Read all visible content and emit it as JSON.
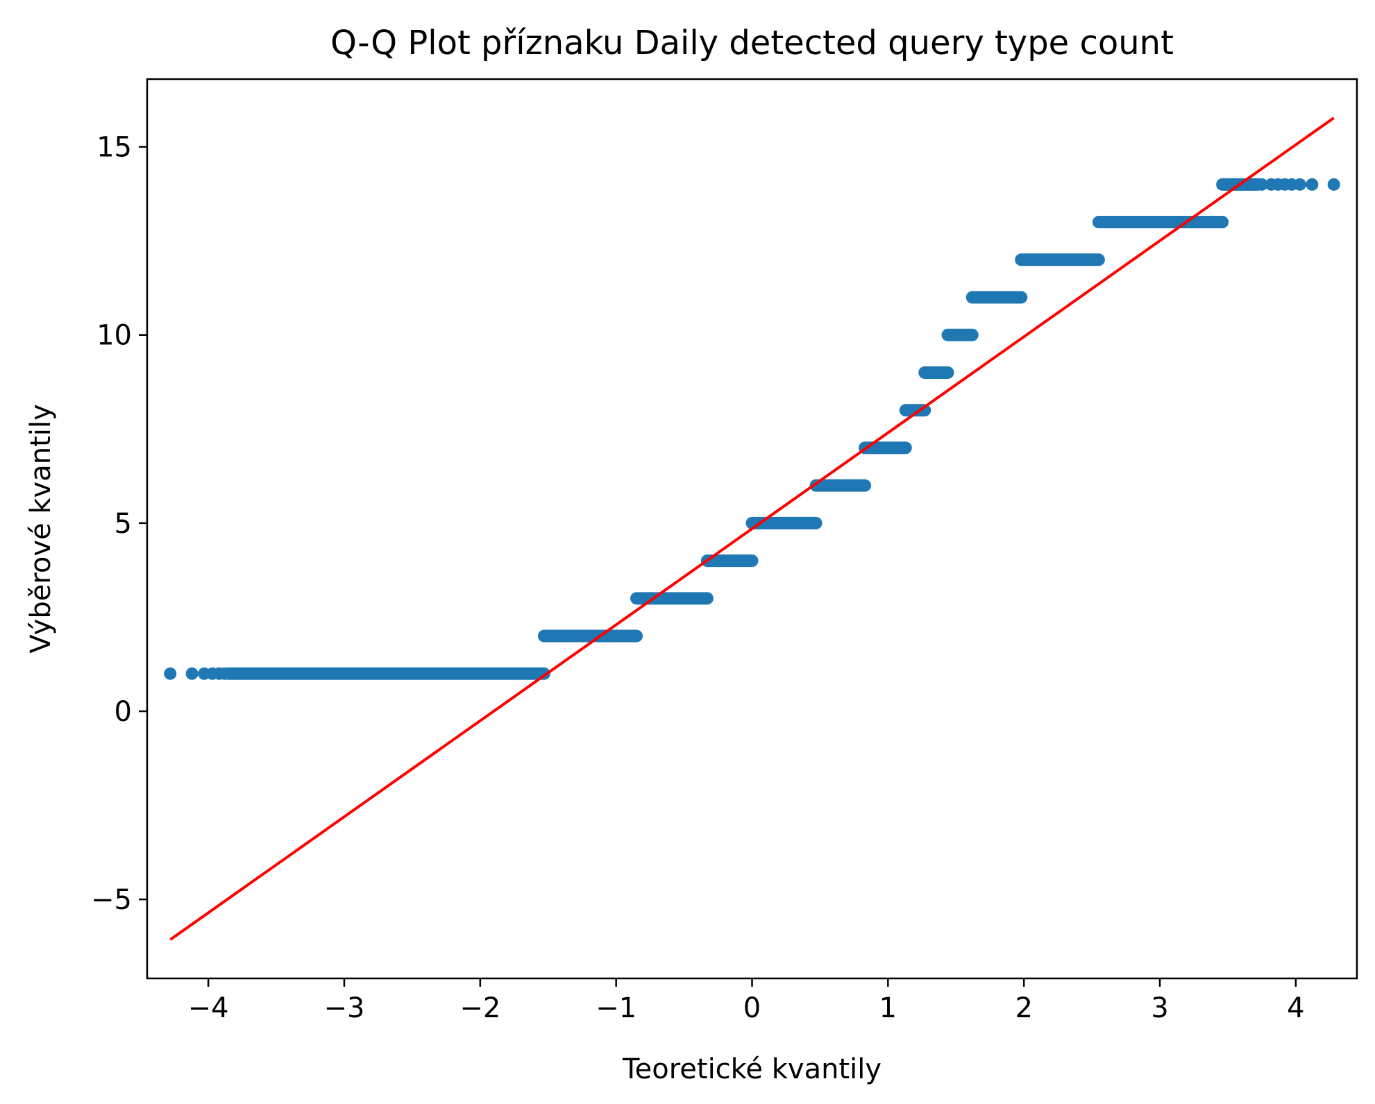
{
  "chart_data": {
    "type": "scatter",
    "title": "Q-Q Plot příznaku Daily detected query type count",
    "xlabel": "Teoretické kvantily",
    "ylabel": "Výběrové kvantily",
    "xlim": [
      -4.45,
      4.45
    ],
    "ylim": [
      -7.1,
      16.8
    ],
    "xticks": [
      -4,
      -3,
      -2,
      -1,
      0,
      1,
      2,
      3,
      4
    ],
    "xtick_labels": [
      "−4",
      "−3",
      "−2",
      "−1",
      "0",
      "1",
      "2",
      "3",
      "4"
    ],
    "yticks": [
      -5,
      0,
      5,
      10,
      15
    ],
    "ytick_labels": [
      "−5",
      "0",
      "5",
      "10",
      "15"
    ],
    "grid": false,
    "series": [
      {
        "kind": "points",
        "color": "#1f77b4",
        "isolated_points": [
          {
            "x": -4.28,
            "y": 1
          },
          {
            "x": -4.12,
            "y": 1
          },
          {
            "x": -4.03,
            "y": 1
          },
          {
            "x": -3.97,
            "y": 1
          },
          {
            "x": -3.92,
            "y": 1
          },
          {
            "x": -3.88,
            "y": 1
          },
          {
            "x": 3.75,
            "y": 14
          },
          {
            "x": 3.82,
            "y": 14
          },
          {
            "x": 3.87,
            "y": 14
          },
          {
            "x": 3.92,
            "y": 14
          },
          {
            "x": 3.97,
            "y": 14
          },
          {
            "x": 4.03,
            "y": 14
          },
          {
            "x": 4.12,
            "y": 14
          },
          {
            "x": 4.28,
            "y": 14
          }
        ],
        "runs": [
          {
            "y": 1,
            "x_from": -3.85,
            "x_to": -1.53
          },
          {
            "y": 2,
            "x_from": -1.53,
            "x_to": -0.85
          },
          {
            "y": 3,
            "x_from": -0.85,
            "x_to": -0.33
          },
          {
            "y": 4,
            "x_from": -0.33,
            "x_to": 0.0
          },
          {
            "y": 5,
            "x_from": 0.0,
            "x_to": 0.47
          },
          {
            "y": 6,
            "x_from": 0.47,
            "x_to": 0.83
          },
          {
            "y": 7,
            "x_from": 0.83,
            "x_to": 1.13
          },
          {
            "y": 8,
            "x_from": 1.13,
            "x_to": 1.27
          },
          {
            "y": 9,
            "x_from": 1.27,
            "x_to": 1.44
          },
          {
            "y": 10,
            "x_from": 1.44,
            "x_to": 1.62
          },
          {
            "y": 11,
            "x_from": 1.62,
            "x_to": 1.98
          },
          {
            "y": 12,
            "x_from": 1.98,
            "x_to": 2.55
          },
          {
            "y": 13,
            "x_from": 2.55,
            "x_to": 3.46
          },
          {
            "y": 14,
            "x_from": 3.46,
            "x_to": 3.72
          }
        ]
      },
      {
        "kind": "line",
        "color": "#ff0000",
        "points": [
          {
            "x": -4.28,
            "y": -6.07
          },
          {
            "x": 4.28,
            "y": 15.77
          }
        ]
      }
    ]
  }
}
